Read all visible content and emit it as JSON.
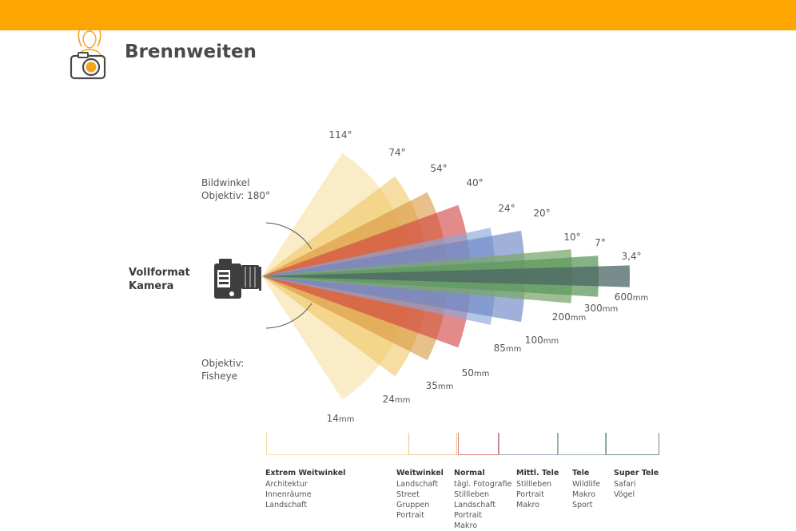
{
  "header": {
    "title": "Brennweiten"
  },
  "colors": {
    "accent": "#FFA500"
  },
  "annotations": {
    "bildwinkel": [
      "Bildwinkel",
      "Objektiv: 180°"
    ],
    "fisheye": [
      "Objektiv:",
      "Fisheye"
    ],
    "camera": [
      "Vollformat",
      "Kamera"
    ]
  },
  "lenses": [
    {
      "angle_label": "114°",
      "focal": "14",
      "unit": "mm",
      "angle": 114,
      "color": "#F5DFA0",
      "opacity": 0.6
    },
    {
      "angle_label": "74°",
      "focal": "24",
      "unit": "mm",
      "angle": 74,
      "color": "#EFC766",
      "opacity": 0.6
    },
    {
      "angle_label": "54°",
      "focal": "35",
      "unit": "mm",
      "angle": 54,
      "color": "#D9963E",
      "opacity": 0.6
    },
    {
      "angle_label": "40°",
      "focal": "50",
      "unit": "mm",
      "angle": 40,
      "color": "#D03C3C",
      "opacity": 0.6
    },
    {
      "angle_label": "24°",
      "focal": "85",
      "unit": "mm",
      "angle": 24,
      "color": "#8CA8D8",
      "opacity": 0.65
    },
    {
      "angle_label": "20°",
      "focal": "100",
      "unit": "mm",
      "angle": 20,
      "color": "#6C86C4",
      "opacity": 0.65
    },
    {
      "angle_label": "10°",
      "focal": "200",
      "unit": "mm",
      "angle": 10,
      "color": "#7CA86C",
      "opacity": 0.75
    },
    {
      "angle_label": "7°",
      "focal": "300",
      "unit": "mm",
      "angle": 7,
      "color": "#5E9A5E",
      "opacity": 0.75
    },
    {
      "angle_label": "3,4°",
      "focal": "600",
      "unit": "mm",
      "angle": 3.4,
      "color": "#4C6464",
      "opacity": 0.75
    }
  ],
  "categories": [
    {
      "title": "Extrem Weitwinkel",
      "items": [
        "Architektur",
        "Innenräume",
        "Landschaft"
      ],
      "color": "#F5DFA0"
    },
    {
      "title": "Weitwinkel",
      "items": [
        "Landschaft",
        "Street",
        "Gruppen",
        "Portrait"
      ],
      "color": "#EFC58C"
    },
    {
      "title": "Normal",
      "items": [
        "tägl. Fotografie",
        "Stillleben",
        "Landschaft",
        "Portrait",
        "Makro"
      ],
      "color": "#D97A7A"
    },
    {
      "title": "Mittl. Tele",
      "items": [
        "Stillleben",
        "Portrait",
        "Makro"
      ],
      "color": "#9AAAC8"
    },
    {
      "title": "Tele",
      "items": [
        "Wildlife",
        "Makro",
        "Sport"
      ],
      "color": "#9CB89C"
    },
    {
      "title": "Super Tele",
      "items": [
        "Safari",
        "Vögel"
      ],
      "color": "#6F8E8E"
    }
  ]
}
